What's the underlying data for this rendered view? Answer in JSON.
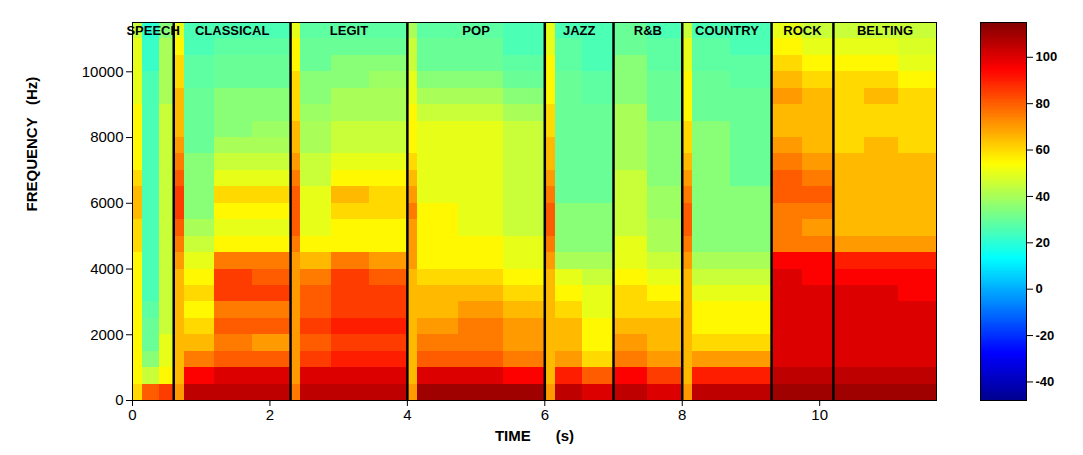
{
  "chart_data": {
    "type": "heatmap",
    "x_label": "TIME      (s)",
    "y_label": "FREQUENCY   (Hz)",
    "xlim": [
      0,
      11.7
    ],
    "ylim": [
      0,
      11500
    ],
    "xticks": [
      0,
      2,
      4,
      6,
      8,
      10
    ],
    "yticks": [
      0,
      2000,
      4000,
      6000,
      8000,
      10000
    ],
    "sections": [
      {
        "label": "SPEECH",
        "start": 0,
        "end": 0.6
      },
      {
        "label": "CLASSICAL",
        "start": 0.6,
        "end": 2.3
      },
      {
        "label": "LEGIT",
        "start": 2.3,
        "end": 4.0
      },
      {
        "label": "POP",
        "start": 4.0,
        "end": 6.0
      },
      {
        "label": "JAZZ",
        "start": 6.0,
        "end": 7.0
      },
      {
        "label": "R&B",
        "start": 7.0,
        "end": 8.0
      },
      {
        "label": "COUNTRY",
        "start": 8.0,
        "end": 9.3
      },
      {
        "label": "ROCK",
        "start": 9.3,
        "end": 10.2
      },
      {
        "label": "BELTING",
        "start": 10.2,
        "end": 11.7
      }
    ],
    "time_edges": [
      0,
      0.15,
      0.4,
      0.6,
      0.75,
      1.2,
      1.75,
      2.3,
      2.45,
      2.9,
      3.45,
      4.0,
      4.15,
      4.75,
      5.4,
      6.0,
      6.15,
      6.55,
      7.0,
      7.5,
      8.0,
      8.15,
      8.7,
      9.3,
      9.75,
      10.2,
      10.65,
      11.15,
      11.7
    ],
    "freq_edges": [
      0,
      500,
      1000,
      1500,
      2000,
      2500,
      3000,
      3500,
      4000,
      4500,
      5000,
      5500,
      6000,
      6500,
      7000,
      7500,
      8000,
      8500,
      9000,
      9500,
      10000,
      10500,
      11000,
      11500
    ],
    "cells": [
      [
        60,
        55,
        55,
        55,
        55,
        55,
        55,
        55,
        55,
        60,
        60,
        65,
        65,
        60,
        55,
        55,
        55,
        55,
        50,
        50,
        50,
        50,
        45
      ],
      [
        80,
        45,
        35,
        30,
        30,
        28,
        25,
        25,
        25,
        25,
        25,
        25,
        25,
        25,
        25,
        25,
        25,
        25,
        25,
        25,
        22,
        22,
        20
      ],
      [
        85,
        55,
        50,
        50,
        45,
        45,
        45,
        45,
        45,
        45,
        45,
        45,
        45,
        45,
        45,
        45,
        45,
        45,
        40,
        40,
        40,
        40,
        35
      ],
      [
        70,
        65,
        65,
        65,
        65,
        65,
        65,
        65,
        70,
        75,
        80,
        85,
        85,
        80,
        75,
        70,
        65,
        65,
        65,
        60,
        60,
        55,
        50
      ],
      [
        105,
        95,
        75,
        65,
        60,
        55,
        60,
        55,
        50,
        45,
        40,
        35,
        35,
        35,
        35,
        30,
        30,
        30,
        30,
        28,
        28,
        25,
        25
      ],
      [
        105,
        100,
        80,
        75,
        80,
        75,
        85,
        85,
        75,
        55,
        50,
        55,
        60,
        50,
        45,
        40,
        35,
        35,
        35,
        30,
        30,
        28,
        25
      ],
      [
        105,
        100,
        80,
        70,
        80,
        75,
        85,
        80,
        75,
        55,
        50,
        55,
        60,
        50,
        45,
        40,
        38,
        35,
        35,
        30,
        30,
        28,
        25
      ],
      [
        75,
        70,
        70,
        70,
        70,
        70,
        70,
        70,
        70,
        75,
        80,
        80,
        80,
        75,
        70,
        65,
        65,
        60,
        60,
        60,
        55,
        55,
        50
      ],
      [
        105,
        100,
        85,
        80,
        85,
        80,
        80,
        75,
        65,
        55,
        50,
        50,
        50,
        45,
        45,
        40,
        40,
        38,
        35,
        35,
        30,
        30,
        28
      ],
      [
        105,
        100,
        90,
        85,
        90,
        85,
        85,
        85,
        75,
        55,
        55,
        60,
        65,
        55,
        50,
        45,
        45,
        40,
        40,
        35,
        35,
        30,
        28
      ],
      [
        105,
        100,
        90,
        85,
        90,
        85,
        85,
        80,
        70,
        55,
        55,
        60,
        60,
        55,
        50,
        45,
        45,
        40,
        40,
        38,
        35,
        30,
        28
      ],
      [
        70,
        65,
        65,
        65,
        65,
        65,
        65,
        65,
        70,
        70,
        70,
        75,
        70,
        65,
        60,
        55,
        55,
        55,
        50,
        50,
        45,
        45,
        40
      ],
      [
        110,
        100,
        80,
        75,
        70,
        65,
        65,
        60,
        55,
        55,
        55,
        55,
        50,
        50,
        50,
        50,
        50,
        45,
        40,
        35,
        30,
        30,
        28
      ],
      [
        110,
        100,
        80,
        75,
        75,
        70,
        65,
        60,
        55,
        55,
        50,
        50,
        50,
        50,
        50,
        50,
        50,
        45,
        40,
        35,
        30,
        30,
        28
      ],
      [
        110,
        95,
        75,
        70,
        70,
        65,
        60,
        55,
        50,
        50,
        45,
        45,
        45,
        45,
        45,
        45,
        45,
        40,
        35,
        30,
        28,
        25,
        25
      ],
      [
        70,
        65,
        65,
        65,
        65,
        65,
        65,
        65,
        70,
        75,
        80,
        80,
        75,
        70,
        65,
        65,
        60,
        60,
        55,
        55,
        55,
        50,
        50
      ],
      [
        105,
        90,
        70,
        65,
        65,
        60,
        55,
        50,
        40,
        35,
        35,
        35,
        30,
        30,
        30,
        30,
        30,
        30,
        30,
        30,
        28,
        28,
        25
      ],
      [
        100,
        80,
        60,
        55,
        55,
        50,
        50,
        45,
        40,
        35,
        35,
        35,
        30,
        30,
        30,
        30,
        30,
        30,
        28,
        28,
        25,
        25,
        25
      ],
      [
        105,
        95,
        75,
        70,
        65,
        60,
        60,
        55,
        50,
        50,
        45,
        45,
        45,
        45,
        40,
        40,
        40,
        40,
        35,
        35,
        35,
        30,
        30
      ],
      [
        100,
        85,
        70,
        65,
        65,
        60,
        55,
        50,
        45,
        40,
        40,
        38,
        38,
        35,
        35,
        35,
        35,
        30,
        30,
        30,
        28,
        28,
        25
      ],
      [
        70,
        65,
        65,
        65,
        65,
        65,
        65,
        65,
        70,
        75,
        80,
        80,
        75,
        70,
        65,
        60,
        60,
        55,
        55,
        55,
        50,
        50,
        45
      ],
      [
        105,
        90,
        70,
        60,
        55,
        55,
        50,
        45,
        40,
        35,
        35,
        35,
        35,
        35,
        35,
        35,
        35,
        30,
        30,
        30,
        28,
        28,
        25
      ],
      [
        105,
        90,
        70,
        60,
        55,
        55,
        50,
        45,
        40,
        35,
        35,
        35,
        35,
        30,
        30,
        30,
        30,
        30,
        30,
        28,
        28,
        25,
        25
      ],
      [
        110,
        105,
        100,
        100,
        100,
        100,
        100,
        100,
        95,
        75,
        75,
        75,
        80,
        80,
        75,
        70,
        65,
        65,
        70,
        65,
        60,
        55,
        50
      ],
      [
        110,
        105,
        100,
        100,
        100,
        100,
        100,
        95,
        95,
        75,
        70,
        75,
        80,
        75,
        70,
        65,
        65,
        65,
        65,
        60,
        55,
        50,
        45
      ],
      [
        110,
        105,
        100,
        100,
        100,
        100,
        100,
        95,
        90,
        70,
        65,
        65,
        65,
        65,
        65,
        60,
        60,
        60,
        60,
        60,
        55,
        50,
        45
      ],
      [
        110,
        105,
        100,
        100,
        100,
        100,
        100,
        95,
        90,
        70,
        65,
        65,
        65,
        65,
        65,
        65,
        60,
        60,
        65,
        60,
        55,
        50,
        45
      ],
      [
        110,
        105,
        100,
        100,
        100,
        100,
        95,
        95,
        90,
        70,
        65,
        65,
        65,
        65,
        65,
        60,
        60,
        60,
        60,
        55,
        50,
        48,
        45
      ]
    ],
    "colorbar_range": [
      -48,
      115
    ],
    "colorbar_ticks": [
      -40,
      -20,
      0,
      20,
      40,
      60,
      80,
      100
    ]
  }
}
